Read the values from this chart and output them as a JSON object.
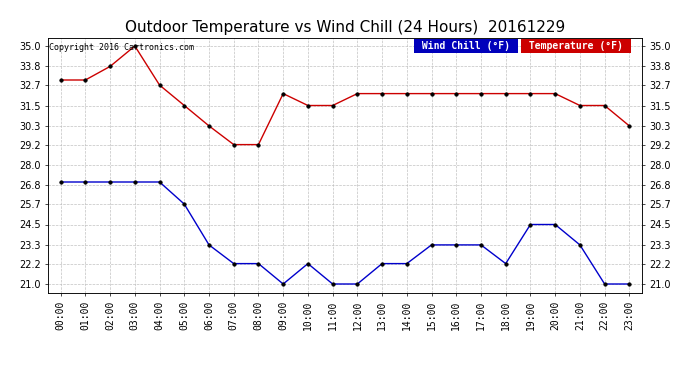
{
  "title": "Outdoor Temperature vs Wind Chill (24 Hours)  20161229",
  "copyright": "Copyright 2016 Cartronics.com",
  "legend_windchill_label": "Wind Chill (°F)",
  "legend_temp_label": "Temperature (°F)",
  "hours": [
    "00:00",
    "01:00",
    "02:00",
    "03:00",
    "04:00",
    "05:00",
    "06:00",
    "07:00",
    "08:00",
    "09:00",
    "10:00",
    "11:00",
    "12:00",
    "13:00",
    "14:00",
    "15:00",
    "16:00",
    "17:00",
    "18:00",
    "19:00",
    "20:00",
    "21:00",
    "22:00",
    "23:00"
  ],
  "temperature": [
    33.0,
    33.0,
    33.8,
    35.0,
    32.7,
    31.5,
    30.3,
    29.2,
    29.2,
    32.2,
    31.5,
    31.5,
    32.2,
    32.2,
    32.2,
    32.2,
    32.2,
    32.2,
    32.2,
    32.2,
    32.2,
    31.5,
    31.5,
    30.3
  ],
  "windchill": [
    27.0,
    27.0,
    27.0,
    27.0,
    27.0,
    25.7,
    23.3,
    22.2,
    22.2,
    21.0,
    22.2,
    21.0,
    21.0,
    22.2,
    22.2,
    23.3,
    23.3,
    23.3,
    22.2,
    24.5,
    24.5,
    23.3,
    21.0,
    21.0
  ],
  "ylim": [
    20.5,
    35.5
  ],
  "yticks": [
    21.0,
    22.2,
    23.3,
    24.5,
    25.7,
    26.8,
    28.0,
    29.2,
    30.3,
    31.5,
    32.7,
    33.8,
    35.0
  ],
  "temp_color": "#cc0000",
  "windchill_color": "#0000cc",
  "background_color": "#ffffff",
  "grid_color": "#bbbbbb",
  "title_fontsize": 11,
  "tick_fontsize": 7,
  "legend_wc_bg": "#0000bb",
  "legend_temp_bg": "#cc0000"
}
